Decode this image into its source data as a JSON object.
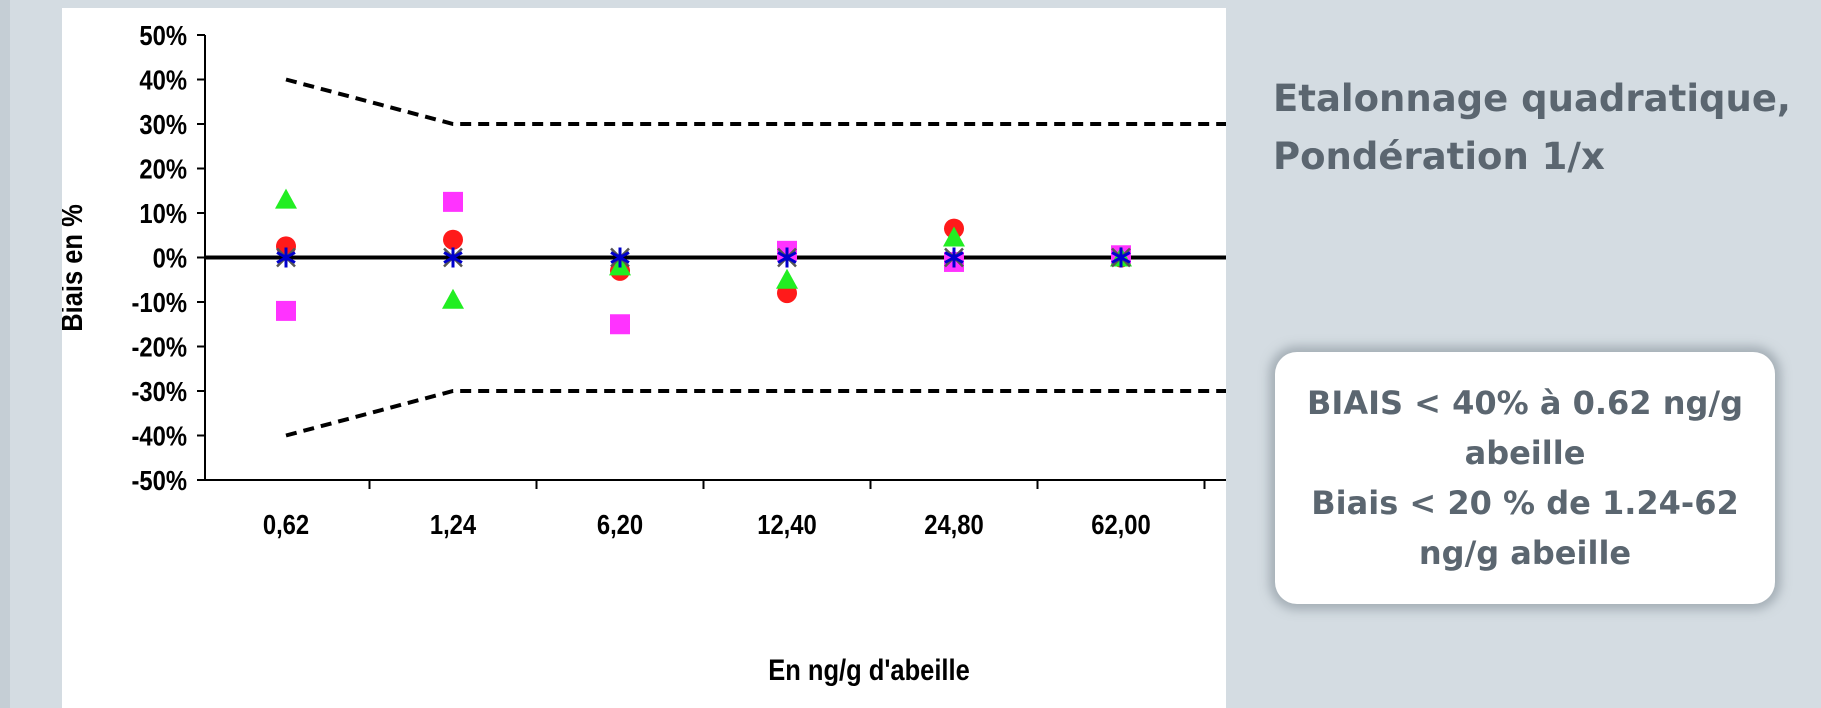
{
  "side_panel": {
    "title_lines": [
      "Etalonnage quadratique,",
      "Pondération 1/x"
    ],
    "note_lines": [
      "BIAIS < 40% à 0.62 ng/g",
      "abeille",
      "Biais < 20 % de 1.24-62",
      "ng/g abeille"
    ]
  },
  "chart_data": {
    "type": "scatter",
    "xlabel": "En ng/g d'abeille",
    "ylabel": "Biais en %",
    "categories": [
      "0,62",
      "1,24",
      "6,20",
      "12,40",
      "24,80",
      "62,00"
    ],
    "y_ticks": [
      "50%",
      "40%",
      "30%",
      "20%",
      "10%",
      "0%",
      "-10%",
      "-20%",
      "-30%",
      "-40%",
      "-50%"
    ],
    "ylim": [
      -50,
      50
    ],
    "grid": false,
    "legend": "none",
    "reference_line": {
      "y": 0,
      "color": "#000000"
    },
    "upper_limit": [
      40,
      30,
      30,
      30,
      30,
      30
    ],
    "lower_limit": [
      -40,
      -30,
      -30,
      -30,
      -30,
      -30
    ],
    "series": [
      {
        "marker": "circle",
        "color": "#ff1a1a",
        "values": [
          2.5,
          4,
          -3,
          -8,
          6.5,
          0
        ]
      },
      {
        "marker": "square",
        "color": "#ff33ff",
        "values": [
          -12,
          12.5,
          -15,
          1.5,
          -1,
          0.5
        ]
      },
      {
        "marker": "triangle",
        "color": "#22ee22",
        "values": [
          13,
          -9.5,
          -2,
          -5,
          4.5,
          0
        ]
      },
      {
        "marker": "x",
        "color": "#555555",
        "values": [
          0,
          0,
          0,
          0,
          0,
          0
        ]
      },
      {
        "marker": "star",
        "color": "#0000cc",
        "values": [
          0,
          0,
          0,
          0,
          0,
          0
        ]
      }
    ]
  }
}
